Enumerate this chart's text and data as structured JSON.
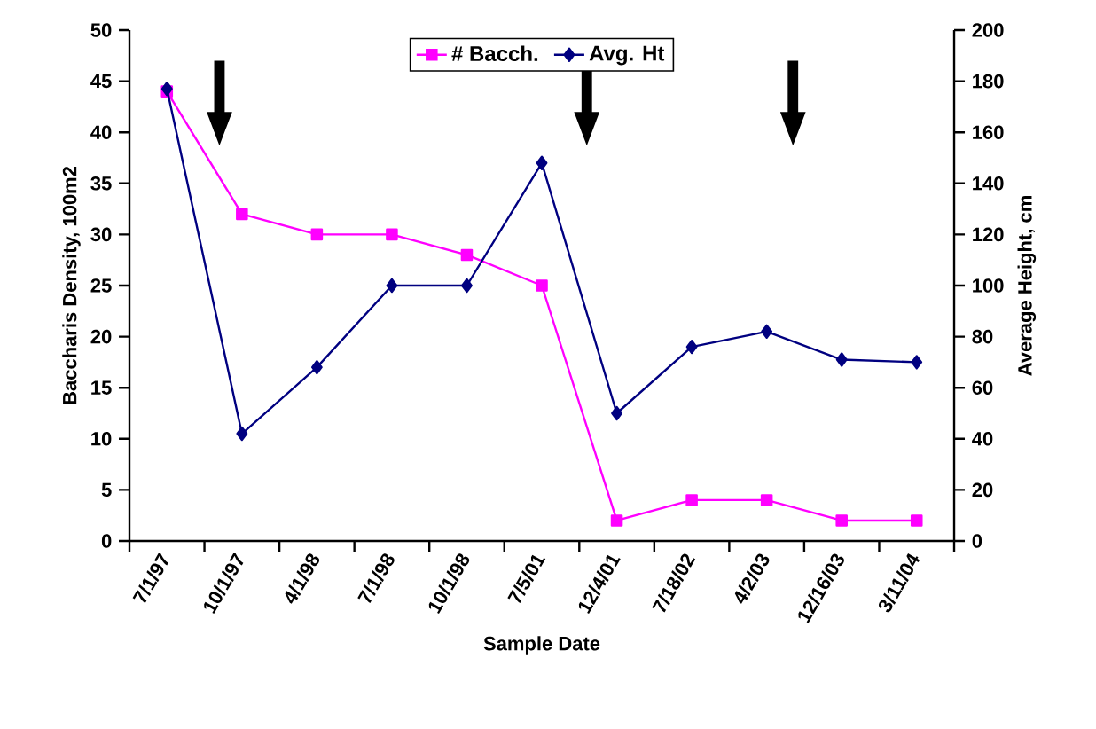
{
  "chart_data": {
    "type": "line",
    "xlabel": "Sample Date",
    "ylabel": "Baccharis Density, 100m2",
    "y2label": "Average Height, cm",
    "categories": [
      "7/1/97",
      "10/1/97",
      "4/1/98",
      "7/1/98",
      "10/1/98",
      "7/5/01",
      "12/4/01",
      "7/18/02",
      "4/2/03",
      "12/16/03",
      "3/11/04"
    ],
    "series": [
      {
        "name": "# Bacch.",
        "color": "#ff00ff",
        "marker": "square",
        "values": [
          44,
          32,
          30,
          30,
          28,
          25,
          2,
          4,
          4,
          2,
          2
        ]
      },
      {
        "name": "Avg. Ht",
        "color": "#000080",
        "marker": "diamond",
        "axis": "y2",
        "values": [
          177,
          42,
          68,
          100,
          100,
          148,
          50,
          76,
          82,
          71,
          70
        ]
      }
    ],
    "ylim": [
      0,
      50
    ],
    "yticks": [
      0,
      5,
      10,
      15,
      20,
      25,
      30,
      35,
      40,
      45,
      50
    ],
    "y2lim": [
      0,
      200
    ],
    "y2ticks": [
      0,
      20,
      40,
      60,
      80,
      100,
      120,
      140,
      160,
      180,
      200
    ],
    "grid": false,
    "legend": "top"
  }
}
